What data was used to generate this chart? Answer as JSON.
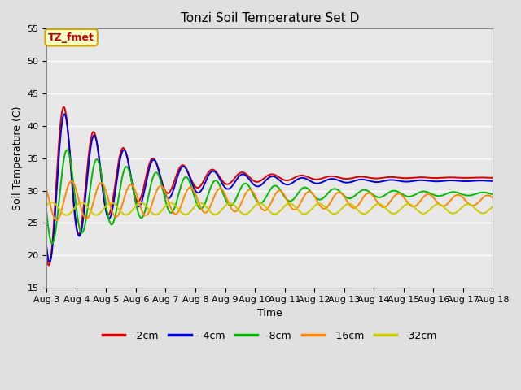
{
  "title": "Tonzi Soil Temperature Set D",
  "xlabel": "Time",
  "ylabel": "Soil Temperature (C)",
  "ylim": [
    15,
    55
  ],
  "annotation_text": "TZ_fmet",
  "annotation_color": "#cc0000",
  "annotation_bg": "#ffffcc",
  "annotation_border": "#ccaa00",
  "x_start_day": 3,
  "x_end_day": 18,
  "x_tick_days": [
    3,
    4,
    5,
    6,
    7,
    8,
    9,
    10,
    11,
    12,
    13,
    14,
    15,
    16,
    17,
    18
  ],
  "series": {
    "-2cm": {
      "color": "#dd0000",
      "amplitude": 14.0,
      "mean": 32.0,
      "phase_hours": 14.0,
      "amp_decay": 0.018
    },
    "-4cm": {
      "color": "#0000dd",
      "amplitude": 13.0,
      "mean": 31.5,
      "phase_hours": 14.5,
      "amp_decay": 0.016
    },
    "-8cm": {
      "color": "#00bb00",
      "amplitude": 8.0,
      "mean": 29.5,
      "phase_hours": 16.5,
      "amp_decay": 0.01
    },
    "-16cm": {
      "color": "#ff8800",
      "amplitude": 3.2,
      "mean": 28.5,
      "phase_hours": 20.0,
      "amp_decay": 0.004
    },
    "-32cm": {
      "color": "#cccc00",
      "amplitude": 1.0,
      "mean": 27.2,
      "phase_hours": 28.0,
      "amp_decay": 0.001
    }
  },
  "bg_color": "#e8e8e8",
  "grid_color": "#ffffff",
  "fig_bg": "#e0e0e0",
  "linewidth": 1.4,
  "figwidth": 6.4,
  "figheight": 4.8,
  "dpi": 100
}
